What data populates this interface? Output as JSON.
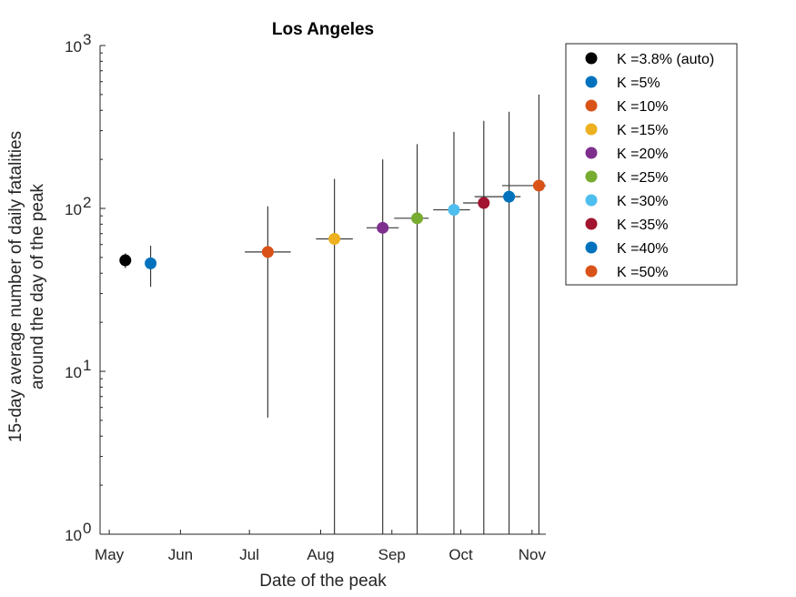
{
  "chart_data": {
    "type": "scatter",
    "title": "Los Angeles",
    "xlabel": "Date of the peak",
    "ylabel_lines": [
      "15-day average number of daily fatalities",
      "around the day of the peak"
    ],
    "yscale": "log",
    "ylim": [
      1,
      1000
    ],
    "y_ticks": [
      {
        "base": "10",
        "exp": "0",
        "value": 1
      },
      {
        "base": "10",
        "exp": "1",
        "value": 10
      },
      {
        "base": "10",
        "exp": "2",
        "value": 100
      },
      {
        "base": "10",
        "exp": "3",
        "value": 1000
      }
    ],
    "xlim": [
      "2020-04-27",
      "2020-11-07"
    ],
    "x_ticks": [
      {
        "label": "May",
        "date": "2020-05-01"
      },
      {
        "label": "Jun",
        "date": "2020-06-01"
      },
      {
        "label": "Jul",
        "date": "2020-07-01"
      },
      {
        "label": "Aug",
        "date": "2020-08-01"
      },
      {
        "label": "Sep",
        "date": "2020-09-01"
      },
      {
        "label": "Oct",
        "date": "2020-10-01"
      },
      {
        "label": "Nov",
        "date": "2020-11-01"
      }
    ],
    "grid": false,
    "legend_position": "outside-right",
    "series": [
      {
        "name": "K =3.8% (auto)",
        "color": "#000000",
        "x": "2020-05-08",
        "y": 48,
        "y_low": 43,
        "y_high": 53,
        "x_low": "2020-05-08",
        "x_high": "2020-05-08"
      },
      {
        "name": "K =5%",
        "color": "#0072BD",
        "x": "2020-05-19",
        "y": 46,
        "y_low": 33,
        "y_high": 59,
        "x_low": "2020-05-19",
        "x_high": "2020-05-19"
      },
      {
        "name": "K =10%",
        "color": "#D95319",
        "x": "2020-07-09",
        "y": 54,
        "y_low": 5.2,
        "y_high": 103,
        "x_low": "2020-06-29",
        "x_high": "2020-07-19"
      },
      {
        "name": "K =15%",
        "color": "#EDB120",
        "x": "2020-08-07",
        "y": 65,
        "y_low": 1,
        "y_high": 152,
        "x_low": "2020-07-30",
        "x_high": "2020-08-15"
      },
      {
        "name": "K =20%",
        "color": "#7E2F8E",
        "x": "2020-08-28",
        "y": 76,
        "y_low": 1,
        "y_high": 200,
        "x_low": "2020-08-21",
        "x_high": "2020-09-04"
      },
      {
        "name": "K =25%",
        "color": "#77AC30",
        "x": "2020-09-12",
        "y": 87,
        "y_low": 1,
        "y_high": 248,
        "x_low": "2020-09-02",
        "x_high": "2020-09-17"
      },
      {
        "name": "K =30%",
        "color": "#4DBEEE",
        "x": "2020-09-28",
        "y": 98,
        "y_low": 1,
        "y_high": 295,
        "x_low": "2020-09-19",
        "x_high": "2020-10-05"
      },
      {
        "name": "K =35%",
        "color": "#A2142F",
        "x": "2020-10-11",
        "y": 108,
        "y_low": 1,
        "y_high": 345,
        "x_low": "2020-10-02",
        "x_high": "2020-10-13"
      },
      {
        "name": "K =40%",
        "color": "#0072BD",
        "x": "2020-10-22",
        "y": 118,
        "y_low": 1,
        "y_high": 392,
        "x_low": "2020-10-07",
        "x_high": "2020-10-27"
      },
      {
        "name": "K =50%",
        "color": "#D95319",
        "x": "2020-11-04",
        "y": 138,
        "y_low": 1,
        "y_high": 500,
        "x_low": "2020-10-19",
        "x_high": "2020-11-07"
      }
    ]
  }
}
